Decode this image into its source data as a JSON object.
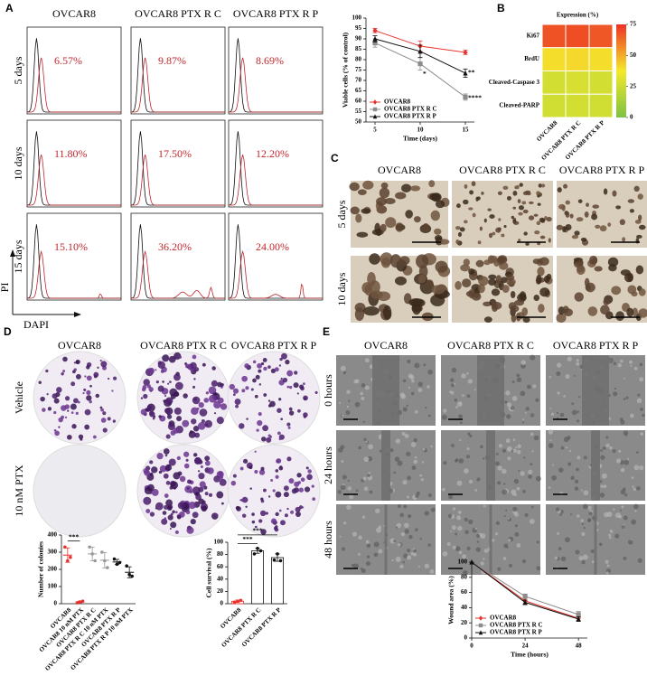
{
  "panel_labels": [
    "A",
    "B",
    "C",
    "D",
    "E"
  ],
  "panel_a": {
    "columns": [
      "OVCAR8",
      "OVCAR8 PTX R C",
      "OVCAR8 PTX R P"
    ],
    "rows": [
      "5 days",
      "10 days",
      "15 days"
    ],
    "percentages": [
      [
        "6.57%",
        "9.87%",
        "8.69%"
      ],
      [
        "11.80%",
        "17.50%",
        "12.20%"
      ],
      [
        "15.10%",
        "36.20%",
        "24.00%"
      ]
    ],
    "y_axis_label": "PI",
    "x_axis_label": "DAPI"
  },
  "panel_c": {
    "columns": [
      "OVCAR8",
      "OVCAR8 PTX R C",
      "OVCAR8 PTX R P"
    ],
    "rows": [
      "5 days",
      "10 days"
    ]
  },
  "panel_d": {
    "columns": [
      "OVCAR8",
      "OVCAR8 PTX R C",
      "OVCAR8 PTX R P"
    ],
    "rows": [
      "Vehicle",
      "10 nM PTX"
    ]
  },
  "panel_e": {
    "columns": [
      "OVCAR8",
      "OVCAR8 PTX R C",
      "OVCAR8 PTX R P"
    ],
    "rows": [
      "0 hours",
      "24 hours",
      "48 hours"
    ]
  },
  "chart_data": [
    {
      "type": "line",
      "x_label": "Time (days)",
      "y_label": "Viable cells (% of control)",
      "x": [
        5,
        10,
        15
      ],
      "xlim": [
        4,
        16
      ],
      "xticks": [
        5,
        10,
        15
      ],
      "ylim": [
        50,
        100
      ],
      "yticks": [
        50,
        55,
        60,
        65,
        70,
        75,
        80,
        85,
        90,
        95,
        100
      ],
      "legend": "lower left",
      "series": [
        {
          "name": "OVCAR8",
          "color": "#e8322d",
          "marker": "diamond",
          "values": [
            94,
            86.5,
            83.5
          ],
          "errors": [
            1,
            2.5,
            1
          ]
        },
        {
          "name": "OVCAR8 PTX R C",
          "color": "#8c8c8c",
          "marker": "square",
          "values": [
            88,
            78,
            62
          ],
          "errors": [
            2,
            3,
            1.5
          ]
        },
        {
          "name": "OVCAR8 PTX R P",
          "color": "#111111",
          "marker": "triangle",
          "values": [
            90,
            84,
            73.5
          ],
          "errors": [
            1.5,
            3,
            2
          ]
        }
      ],
      "annotations": [
        {
          "text": "*",
          "x": 10,
          "y": 73
        },
        {
          "text": "**",
          "x": 15,
          "y": 73.5
        },
        {
          "text": "****",
          "x": 15,
          "y": 61.5
        }
      ]
    },
    {
      "type": "heatmap",
      "title": "Expression (%)",
      "rows": [
        "Ki67",
        "BrdU",
        "Cleaved-Caspase 3",
        "Cleaved-PARP"
      ],
      "columns": [
        "OVCAR8",
        "OVCAR8 PTX R C",
        "OVCAR8 PTX R P"
      ],
      "values": [
        [
          68,
          69,
          67
        ],
        [
          40,
          41,
          40
        ],
        [
          27,
          28,
          27
        ],
        [
          26,
          27,
          26
        ]
      ],
      "clim": [
        0,
        75
      ],
      "cticks": [
        0,
        25,
        50,
        75
      ],
      "colormap": [
        "#7dc242",
        "#f5e92c",
        "#ee3124"
      ]
    },
    {
      "type": "dot",
      "y_label": "Number of colonies",
      "categories": [
        "OVCAR8",
        "OVCAR8 10 nM PTX",
        "OVCAR8 PTX R C",
        "OVCAR8 PTX R C 10 nM PTX",
        "OVCAR8 PTX R P",
        "OVCAR8 PTX R P 10 nM PTX"
      ],
      "colors": [
        "#e8322d",
        "#e8322d",
        "#999999",
        "#999999",
        "#111111",
        "#111111"
      ],
      "points": [
        [
          330,
          250,
          270
        ],
        [
          5,
          10,
          15
        ],
        [
          330,
          290,
          250
        ],
        [
          300,
          250,
          210
        ],
        [
          260,
          230,
          240
        ],
        [
          220,
          170,
          160
        ]
      ],
      "means": [
        283,
        10,
        290,
        253,
        243,
        183
      ],
      "errors": [
        42,
        5,
        40,
        45,
        15,
        32
      ],
      "ylim": [
        0,
        400
      ],
      "yticks": [
        0,
        100,
        200,
        300,
        400
      ],
      "annotations": [
        {
          "text": "***",
          "from": 0,
          "to": 1,
          "y": 365
        }
      ]
    },
    {
      "type": "bar",
      "y_label": "Cell survival (%)",
      "categories": [
        "OVCAR8",
        "OVCAR8 PTX R C",
        "OVCAR8 PTX R P"
      ],
      "colors": [
        "#e8322d",
        "#111111",
        "#111111"
      ],
      "values": [
        4,
        86,
        75
      ],
      "errors": [
        2,
        4,
        6
      ],
      "points": [
        [
          2.5,
          4,
          5.5
        ],
        [
          81,
          90,
          86
        ],
        [
          71,
          81,
          70
        ]
      ],
      "ylim": [
        0,
        100
      ],
      "yticks": [
        0,
        20,
        40,
        60,
        80,
        100
      ],
      "annotations": [
        {
          "text": "***",
          "from": 0,
          "to": 2,
          "y": 112
        },
        {
          "text": "***",
          "from": 0,
          "to": 1,
          "y": 98
        }
      ]
    },
    {
      "type": "line",
      "x_label": "Time (hours)",
      "y_label": "Wound area (%)",
      "x": [
        0,
        24,
        48
      ],
      "xlim": [
        0,
        52
      ],
      "xticks": [
        0,
        24,
        48
      ],
      "ylim": [
        0,
        100
      ],
      "yticks": [
        0,
        20,
        40,
        60,
        80,
        100
      ],
      "legend": "lower left",
      "series": [
        {
          "name": "OVCAR8",
          "color": "#e8322d",
          "marker": "diamond",
          "values": [
            100,
            49,
            26
          ],
          "errors": [
            0,
            4,
            3
          ]
        },
        {
          "name": "OVCAR8 PTX R C",
          "color": "#8c8c8c",
          "marker": "square",
          "values": [
            100,
            55,
            31
          ],
          "errors": [
            0,
            3,
            4
          ]
        },
        {
          "name": "OVCAR8 PTX R P",
          "color": "#111111",
          "marker": "triangle",
          "values": [
            100,
            47,
            25
          ],
          "errors": [
            0,
            3,
            3
          ]
        }
      ],
      "annotations": []
    }
  ]
}
